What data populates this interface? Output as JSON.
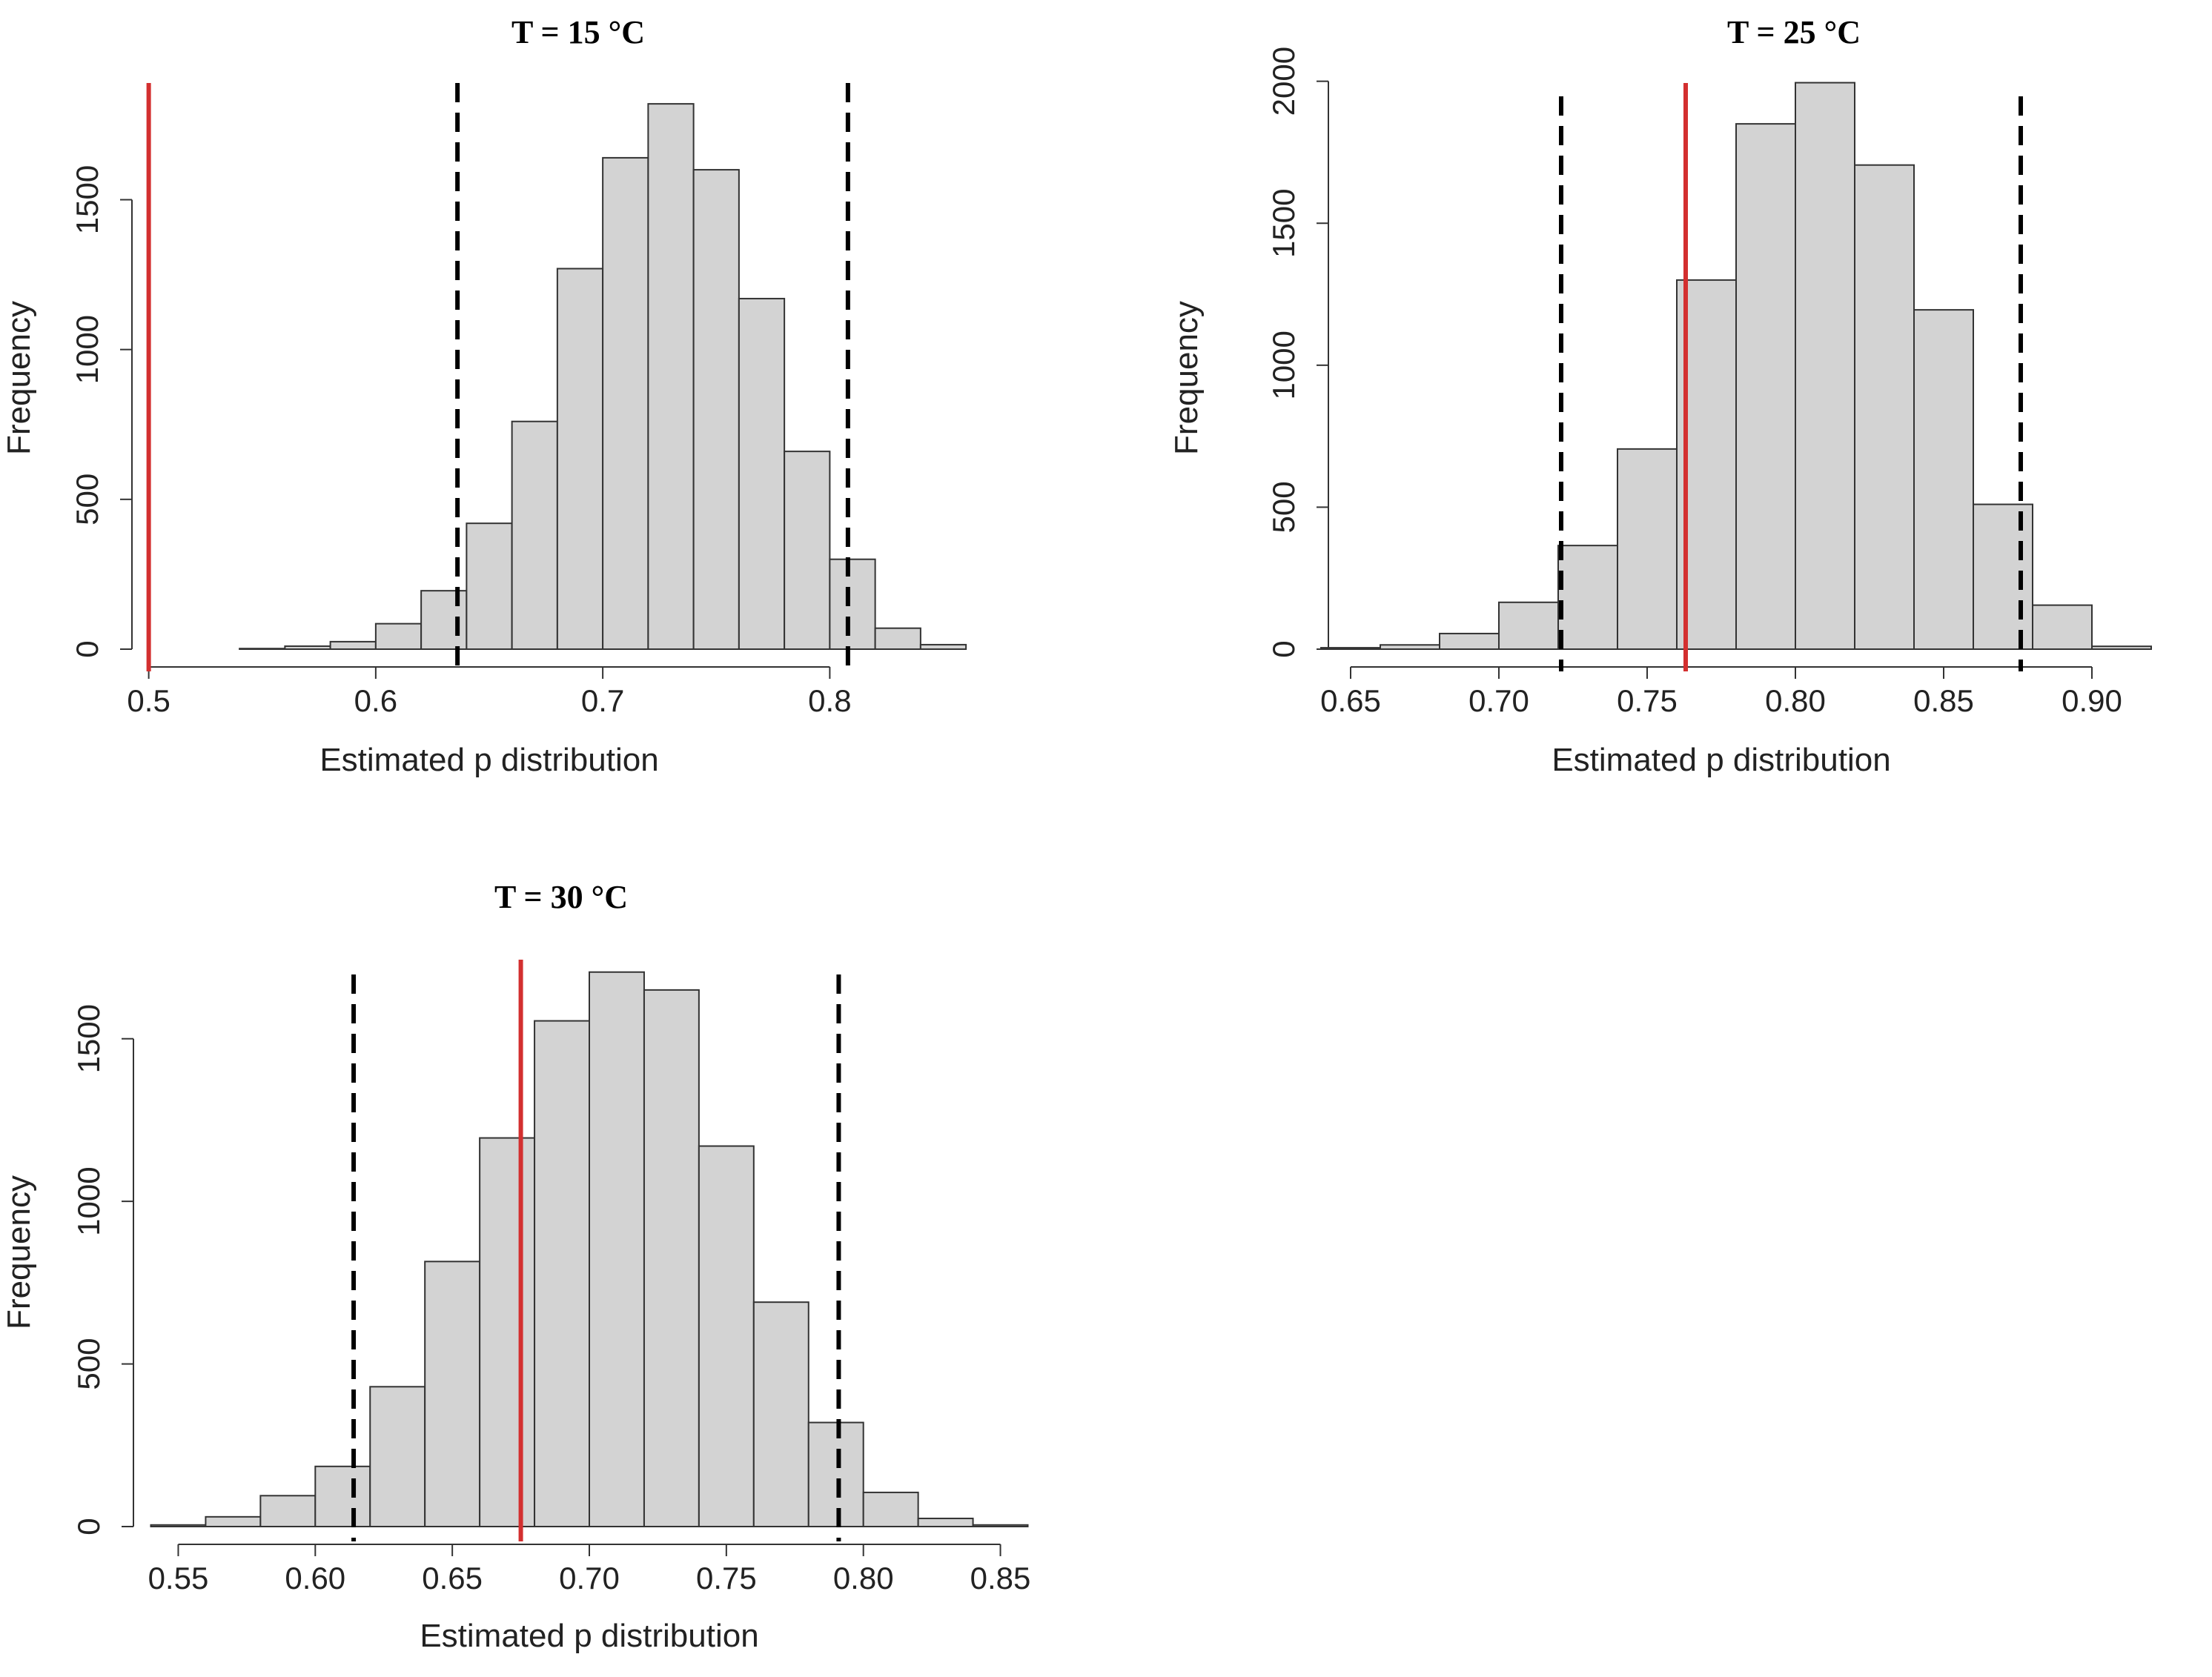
{
  "figure": {
    "name": "Estimated p distribution histograms"
  },
  "chart_data": [
    {
      "type": "bar",
      "title": "T = 15 °C",
      "xlabel": "Estimated p distribution",
      "ylabel": "Frequency",
      "bin_edges": [
        0.54,
        0.56,
        0.58,
        0.6,
        0.62,
        0.64,
        0.66,
        0.68,
        0.7,
        0.72,
        0.74,
        0.76,
        0.78,
        0.8,
        0.82,
        0.84,
        0.86
      ],
      "values": [
        2,
        10,
        25,
        85,
        195,
        420,
        760,
        1270,
        1640,
        1820,
        1600,
        1170,
        660,
        300,
        70,
        15
      ],
      "xlim": [
        0.49,
        0.89
      ],
      "ylim": [
        0,
        1850
      ],
      "x_ticks": [
        0.5,
        0.6,
        0.7,
        0.8
      ],
      "x_tick_labels": [
        "0.5",
        "0.6",
        "0.7",
        "0.8"
      ],
      "y_ticks": [
        0,
        500,
        1000,
        1500
      ],
      "y_tick_labels": [
        "0",
        "500",
        "1000",
        "1500"
      ],
      "ci_lines": [
        0.636,
        0.808
      ],
      "reference_line": 0.5
    },
    {
      "type": "bar",
      "title": "T = 25 °C",
      "xlabel": "Estimated p distribution",
      "ylabel": "Frequency",
      "bin_edges": [
        0.64,
        0.66,
        0.68,
        0.7,
        0.72,
        0.74,
        0.76,
        0.78,
        0.8,
        0.82,
        0.84,
        0.86,
        0.88,
        0.9,
        0.92
      ],
      "values": [
        5,
        15,
        55,
        165,
        365,
        705,
        1300,
        1850,
        1995,
        1705,
        1195,
        510,
        155,
        10
      ],
      "xlim": [
        0.645,
        0.935
      ],
      "ylim": [
        0,
        2020
      ],
      "x_ticks": [
        0.65,
        0.7,
        0.75,
        0.8,
        0.85,
        0.9
      ],
      "x_tick_labels": [
        "0.65",
        "0.70",
        "0.75",
        "0.80",
        "0.85",
        "0.90"
      ],
      "y_ticks": [
        0,
        500,
        1000,
        1500,
        2000
      ],
      "y_tick_labels": [
        "0",
        "500",
        "1000",
        "1500",
        "2000"
      ],
      "ci_lines": [
        0.721,
        0.876
      ],
      "reference_line": 0.763
    },
    {
      "type": "bar",
      "title": "T = 30 °C",
      "xlabel": "Estimated p distribution",
      "ylabel": "Frequency",
      "bin_edges": [
        0.54,
        0.56,
        0.58,
        0.6,
        0.62,
        0.64,
        0.66,
        0.68,
        0.7,
        0.72,
        0.74,
        0.76,
        0.78,
        0.8,
        0.82,
        0.84,
        0.86
      ],
      "values": [
        5,
        30,
        95,
        185,
        430,
        815,
        1195,
        1555,
        1705,
        1650,
        1170,
        690,
        320,
        105,
        25,
        5
      ],
      "xlim": [
        0.535,
        0.865
      ],
      "ylim": [
        0,
        1750
      ],
      "x_ticks": [
        0.55,
        0.6,
        0.65,
        0.7,
        0.75,
        0.8,
        0.85
      ],
      "x_tick_labels": [
        "0.55",
        "0.60",
        "0.65",
        "0.70",
        "0.75",
        "0.80",
        "0.85"
      ],
      "y_ticks": [
        0,
        500,
        1000,
        1500
      ],
      "y_tick_labels": [
        "0",
        "500",
        "1000",
        "1500"
      ],
      "ci_lines": [
        0.614,
        0.791
      ],
      "reference_line": 0.675
    }
  ]
}
